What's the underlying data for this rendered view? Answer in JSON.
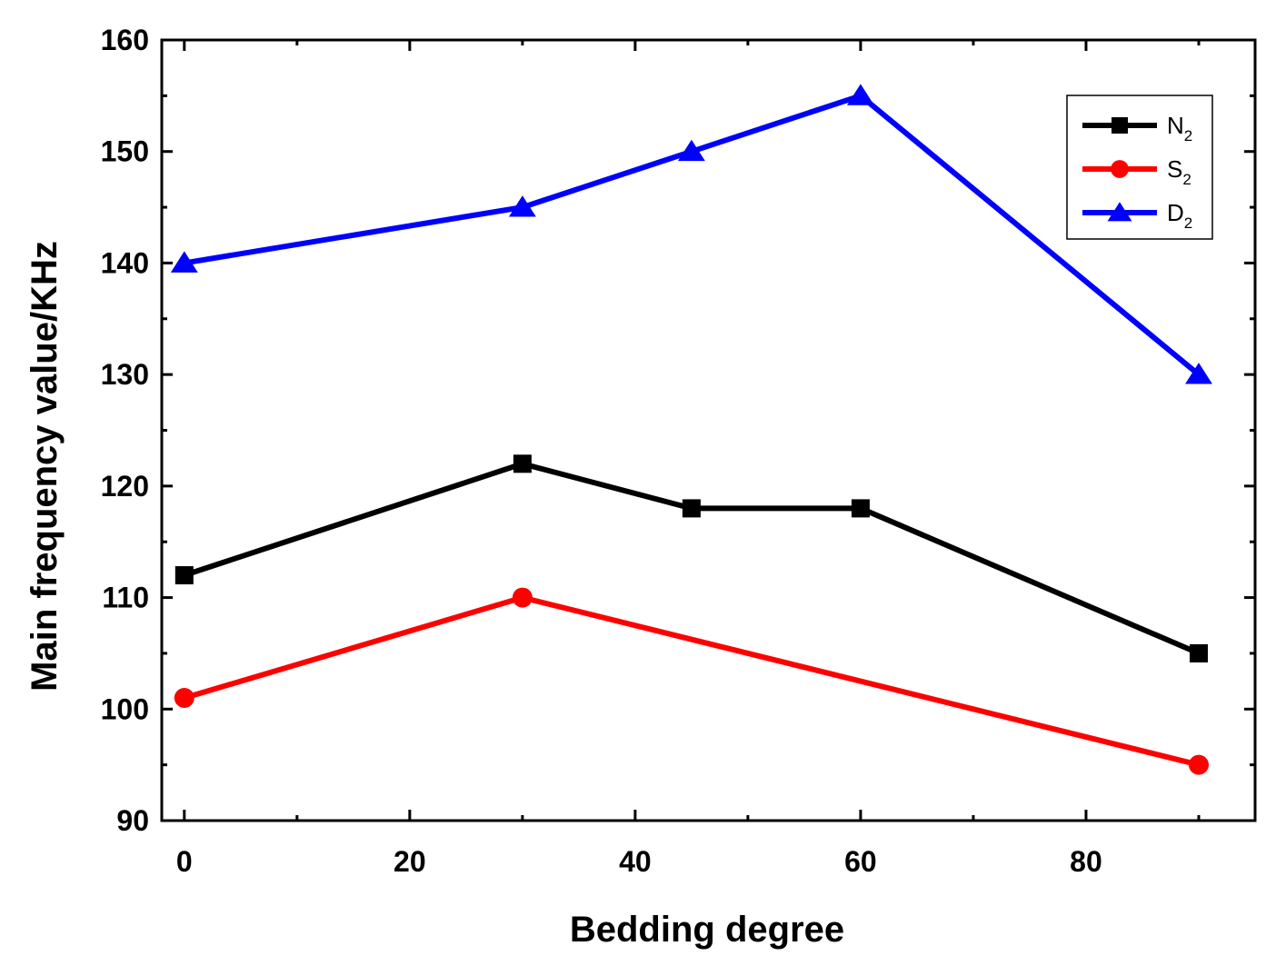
{
  "chart_data": {
    "type": "line",
    "title": "",
    "xlabel": "Bedding degree",
    "ylabel": "Main frequency value/KHz",
    "xlim": [
      -2,
      95
    ],
    "ylim": [
      90,
      160
    ],
    "xticks": [
      0,
      20,
      40,
      60,
      80
    ],
    "yticks": [
      90,
      100,
      110,
      120,
      130,
      140,
      150,
      160
    ],
    "xtick_labels": [
      "0",
      "20",
      "40",
      "60",
      "80"
    ],
    "ytick_labels": [
      "90",
      "100",
      "110",
      "120",
      "130",
      "140",
      "150",
      "160"
    ],
    "grid": false,
    "legend_position": "top-right",
    "series": [
      {
        "name": "N2",
        "label_main": "N",
        "label_sub": "2",
        "color": "#000000",
        "marker": "square",
        "x": [
          0,
          30,
          45,
          60,
          90
        ],
        "values": [
          112,
          122,
          118,
          118,
          105
        ]
      },
      {
        "name": "S2",
        "label_main": "S",
        "label_sub": "2",
        "color": "#ff0000",
        "marker": "circle",
        "x": [
          0,
          30,
          90
        ],
        "values": [
          101,
          110,
          95
        ]
      },
      {
        "name": "D2",
        "label_main": "D",
        "label_sub": "2",
        "color": "#0000ff",
        "marker": "triangle",
        "x": [
          0,
          30,
          45,
          60,
          90
        ],
        "values": [
          140,
          145,
          150,
          155,
          130
        ]
      }
    ]
  }
}
